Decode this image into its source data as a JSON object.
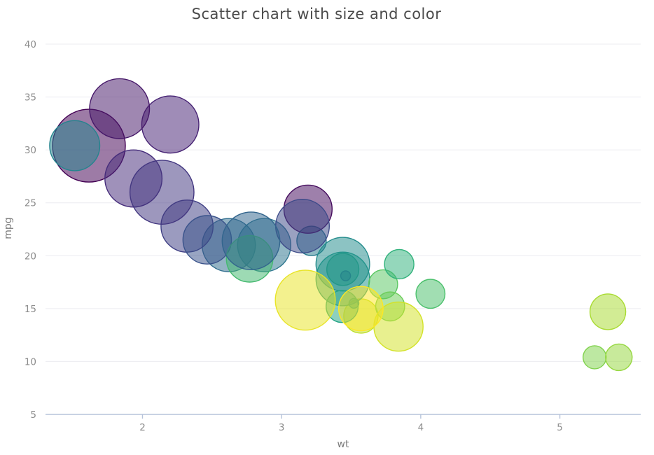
{
  "title": "Scatter chart with size and color",
  "chart_data": {
    "type": "scatter",
    "title": "Scatter chart with size and color",
    "xlabel": "wt",
    "ylabel": "mpg",
    "x_ticks": [
      2,
      3,
      4,
      5
    ],
    "y_ticks": [
      5,
      10,
      15,
      20,
      25,
      30,
      35,
      40
    ],
    "x_range": [
      1.303,
      5.581
    ],
    "y_range": [
      5,
      40
    ],
    "grid": "horizontal-only",
    "legend_position": "none",
    "point_style": {
      "fill_opacity": 0.52,
      "stroke_width": 1.4
    },
    "colors": {
      "background": "#ffffff",
      "grid_line": "#ececf1",
      "axis_line": "#b6c3da",
      "tick_mark": "#b6c3da",
      "tick_label": "#8c8c8c",
      "axis_title": "#7b7b7b",
      "title_text": "#4a4a4a"
    },
    "points": [
      {
        "wt": 2.62,
        "mpg": 21.0,
        "r": 38.0,
        "color": "#2f6d8e"
      },
      {
        "wt": 2.875,
        "mpg": 21.0,
        "r": 38.0,
        "color": "#2c758e"
      },
      {
        "wt": 2.32,
        "mpg": 22.8,
        "r": 37.2,
        "color": "#404085"
      },
      {
        "wt": 3.215,
        "mpg": 21.4,
        "r": 21.0,
        "color": "#297c8e"
      },
      {
        "wt": 3.44,
        "mpg": 18.7,
        "r": 22.9,
        "color": "#2aab81"
      },
      {
        "wt": 3.46,
        "mpg": 18.1,
        "r": 7.0,
        "color": "#365c8c"
      },
      {
        "wt": 3.57,
        "mpg": 14.3,
        "r": 24.5,
        "color": "#bedf2a"
      },
      {
        "wt": 3.19,
        "mpg": 24.4,
        "r": 34.4,
        "color": "#450c5e"
      },
      {
        "wt": 3.15,
        "mpg": 22.8,
        "r": 38.3,
        "color": "#3d4a89"
      },
      {
        "wt": 3.44,
        "mpg": 19.2,
        "r": 38.3,
        "color": "#238c8c"
      },
      {
        "wt": 3.44,
        "mpg": 17.8,
        "r": 38.3,
        "color": "#21948b"
      },
      {
        "wt": 4.07,
        "mpg": 16.4,
        "r": 20.7,
        "color": "#4bc06c"
      },
      {
        "wt": 3.73,
        "mpg": 17.3,
        "r": 20.7,
        "color": "#5bc763"
      },
      {
        "wt": 3.78,
        "mpg": 15.2,
        "r": 20.7,
        "color": "#6ccd59"
      },
      {
        "wt": 5.25,
        "mpg": 10.4,
        "r": 16.5,
        "color": "#80d24d"
      },
      {
        "wt": 5.424,
        "mpg": 10.4,
        "r": 19.0,
        "color": "#95d73f"
      },
      {
        "wt": 5.345,
        "mpg": 14.7,
        "r": 25.5,
        "color": "#a9db32"
      },
      {
        "wt": 2.2,
        "mpg": 32.4,
        "r": 40.8,
        "color": "#472374"
      },
      {
        "wt": 1.615,
        "mpg": 30.4,
        "r": 52.0,
        "color": "#440154"
      },
      {
        "wt": 1.835,
        "mpg": 33.9,
        "r": 42.8,
        "color": "#461869"
      },
      {
        "wt": 2.465,
        "mpg": 21.5,
        "r": 34.6,
        "color": "#3a538b"
      },
      {
        "wt": 3.52,
        "mpg": 15.5,
        "r": 7.0,
        "color": "#1f9c89"
      },
      {
        "wt": 3.435,
        "mpg": 15.2,
        "r": 22.9,
        "color": "#24a485"
      },
      {
        "wt": 3.84,
        "mpg": 13.3,
        "r": 35.1,
        "color": "#d3e229"
      },
      {
        "wt": 3.845,
        "mpg": 19.2,
        "r": 21.0,
        "color": "#31b27c"
      },
      {
        "wt": 1.935,
        "mpg": 27.3,
        "r": 40.8,
        "color": "#462d7b"
      },
      {
        "wt": 2.14,
        "mpg": 26.0,
        "r": 45.7,
        "color": "#433780"
      },
      {
        "wt": 1.513,
        "mpg": 30.4,
        "r": 35.8,
        "color": "#25848e"
      },
      {
        "wt": 3.17,
        "mpg": 15.8,
        "r": 42.8,
        "color": "#e8e427"
      },
      {
        "wt": 2.77,
        "mpg": 19.7,
        "r": 33.2,
        "color": "#44b96f"
      },
      {
        "wt": 3.57,
        "mpg": 15.0,
        "r": 31.7,
        "color": "#fde725"
      },
      {
        "wt": 2.78,
        "mpg": 21.4,
        "r": 41.2,
        "color": "#32658d"
      }
    ]
  }
}
